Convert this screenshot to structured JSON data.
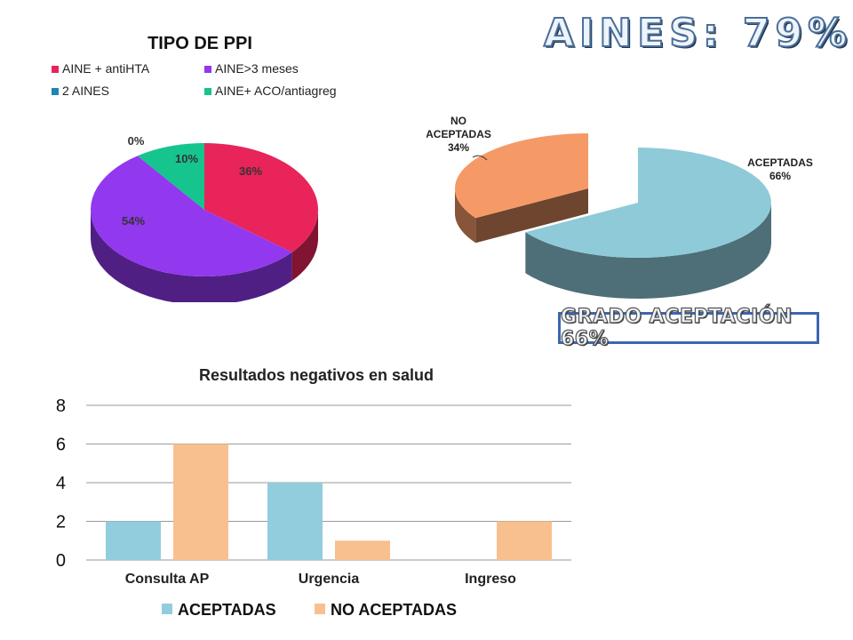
{
  "headline": "AINES: 79%",
  "acceptance_box": "GRADO ACEPTACIÓN 66%",
  "chart_data": [
    {
      "type": "pie",
      "title": "TIPO DE PPI",
      "categories": [
        "AINE + antiHTA",
        "AINE>3 meses",
        "2 AINES",
        "AINE+ ACO/antiagreg"
      ],
      "values": [
        36,
        54,
        0,
        10
      ],
      "labels": [
        "36%",
        "54%",
        "0%",
        "10%"
      ],
      "colors": [
        "#e8245a",
        "#9238ef",
        "#1e86b4",
        "#16c48e"
      ],
      "legend_position": "top"
    },
    {
      "type": "pie",
      "title": "",
      "categories": [
        "ACEPTADAS",
        "NO ACEPTADAS"
      ],
      "values": [
        66,
        34
      ],
      "labels": [
        "66%",
        "34%"
      ],
      "colors": [
        "#8ecad8",
        "#f59a67"
      ]
    },
    {
      "type": "bar",
      "title": "Resultados negativos en salud",
      "categories": [
        "Consulta AP",
        "Urgencia",
        "Ingreso"
      ],
      "series": [
        {
          "name": "ACEPTADAS",
          "values": [
            2,
            4,
            0
          ],
          "color": "#92cddd"
        },
        {
          "name": "NO ACEPTADAS",
          "values": [
            6,
            1,
            2
          ],
          "color": "#f8c08f"
        }
      ],
      "ylim": [
        0,
        8
      ],
      "yticks": [
        0,
        2,
        4,
        6,
        8
      ],
      "grid": true,
      "legend_position": "bottom"
    }
  ]
}
